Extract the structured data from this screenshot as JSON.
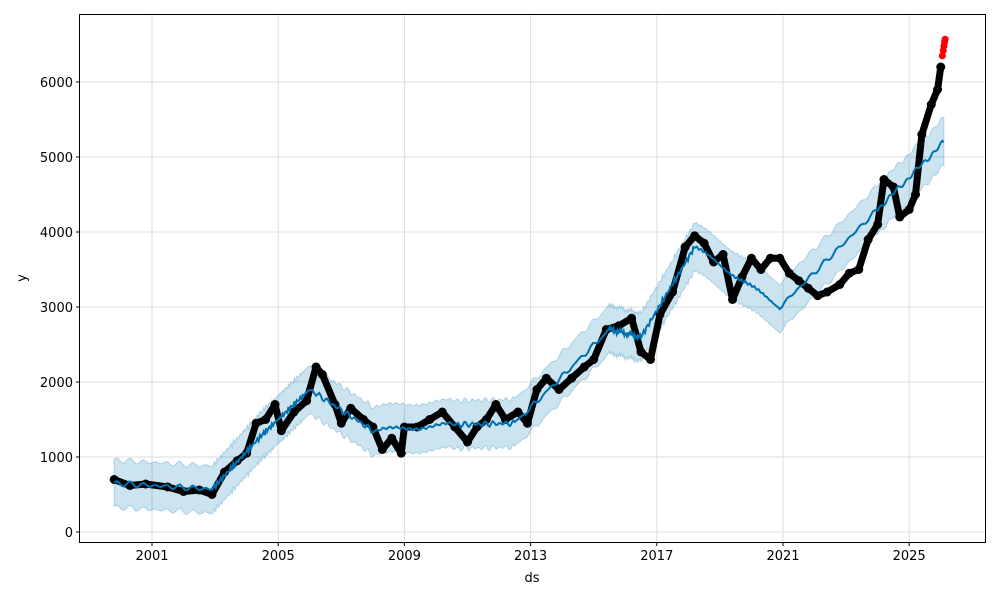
{
  "chart_data": {
    "type": "line",
    "title": "",
    "xlabel": "ds",
    "ylabel": "y",
    "xlim": [
      1998.2,
      2027.0
    ],
    "ylim": [
      -150,
      6880
    ],
    "x_ticks": [
      2001,
      2005,
      2009,
      2013,
      2017,
      2021,
      2025
    ],
    "x_tick_labels": [
      "2001",
      "2005",
      "2009",
      "2013",
      "2017",
      "2021",
      "2025"
    ],
    "y_ticks": [
      0,
      1000,
      2000,
      3000,
      4000,
      5000,
      6000
    ],
    "y_tick_labels": [
      "0",
      "1000",
      "2000",
      "3000",
      "4000",
      "5000",
      "6000"
    ],
    "grid": true,
    "colors": {
      "actual": "#000000",
      "forecast": "#0072B2",
      "interval": "#0072B2",
      "highlight": "#ff0000"
    },
    "series": [
      {
        "role": "actual",
        "x": [
          1999.8,
          2000.3,
          2000.8,
          2001.5,
          2002.0,
          2002.5,
          2002.9,
          2003.3,
          2003.7,
          2004.0,
          2004.3,
          2004.6,
          2004.9,
          2005.1,
          2005.5,
          2005.9,
          2006.2,
          2006.4,
          2006.8,
          2007.0,
          2007.3,
          2007.7,
          2008.0,
          2008.3,
          2008.6,
          2008.9,
          2009.0,
          2009.4,
          2009.8,
          2010.2,
          2010.6,
          2011.0,
          2011.3,
          2011.6,
          2011.9,
          2012.2,
          2012.6,
          2012.9,
          2013.2,
          2013.5,
          2013.9,
          2014.3,
          2014.7,
          2015.0,
          2015.4,
          2015.8,
          2016.2,
          2016.5,
          2016.8,
          2017.1,
          2017.5,
          2017.9,
          2018.2,
          2018.5,
          2018.8,
          2019.1,
          2019.4,
          2019.7,
          2020.0,
          2020.3,
          2020.6,
          2020.9,
          2021.2,
          2021.5,
          2021.8,
          2022.1,
          2022.4,
          2022.8,
          2023.1,
          2023.4,
          2023.7,
          2024.0,
          2024.2,
          2024.5,
          2024.7,
          2025.0,
          2025.2,
          2025.4,
          2025.7,
          2025.9,
          2026.0
        ],
        "y": [
          700,
          620,
          640,
          600,
          540,
          560,
          500,
          800,
          950,
          1050,
          1450,
          1500,
          1700,
          1350,
          1600,
          1750,
          2200,
          2100,
          1700,
          1450,
          1650,
          1500,
          1400,
          1100,
          1250,
          1050,
          1400,
          1400,
          1500,
          1600,
          1400,
          1200,
          1400,
          1500,
          1700,
          1500,
          1600,
          1450,
          1900,
          2050,
          1900,
          2050,
          2200,
          2300,
          2700,
          2750,
          2850,
          2400,
          2300,
          2900,
          3200,
          3800,
          3950,
          3850,
          3600,
          3700,
          3100,
          3400,
          3650,
          3500,
          3650,
          3650,
          3450,
          3350,
          3250,
          3150,
          3200,
          3300,
          3450,
          3500,
          3900,
          4100,
          4700,
          4600,
          4200,
          4300,
          4500,
          5300,
          5700,
          5900,
          6200
        ]
      },
      {
        "role": "highlight",
        "x": [
          2026.05,
          2026.08,
          2026.1,
          2026.12,
          2026.14
        ],
        "y": [
          6350,
          6420,
          6480,
          6530,
          6570
        ]
      },
      {
        "role": "forecast",
        "x": [
          1999.8,
          2002.9,
          2004.5,
          2006.0,
          2008.0,
          2010.5,
          2012.5,
          2015.5,
          2016.5,
          2018.2,
          2020.9,
          2024.0,
          2026.1
        ],
        "y": [
          650,
          570,
          1300,
          1900,
          1350,
          1430,
          1450,
          2700,
          2600,
          3800,
          3000,
          4300,
          5200
        ]
      },
      {
        "role": "interval",
        "x": [
          1999.8,
          2002.9,
          2004.5,
          2006.0,
          2008.0,
          2010.5,
          2012.5,
          2015.5,
          2016.5,
          2018.2,
          2020.9,
          2024.0,
          2026.1
        ],
        "lower": [
          330,
          250,
          980,
          1580,
          1030,
          1110,
          1130,
          2380,
          2280,
          3480,
          2680,
          3980,
          4880
        ],
        "upper": [
          960,
          880,
          1620,
          2220,
          1670,
          1750,
          1770,
          3020,
          2920,
          4120,
          3320,
          4620,
          5520
        ]
      }
    ]
  }
}
